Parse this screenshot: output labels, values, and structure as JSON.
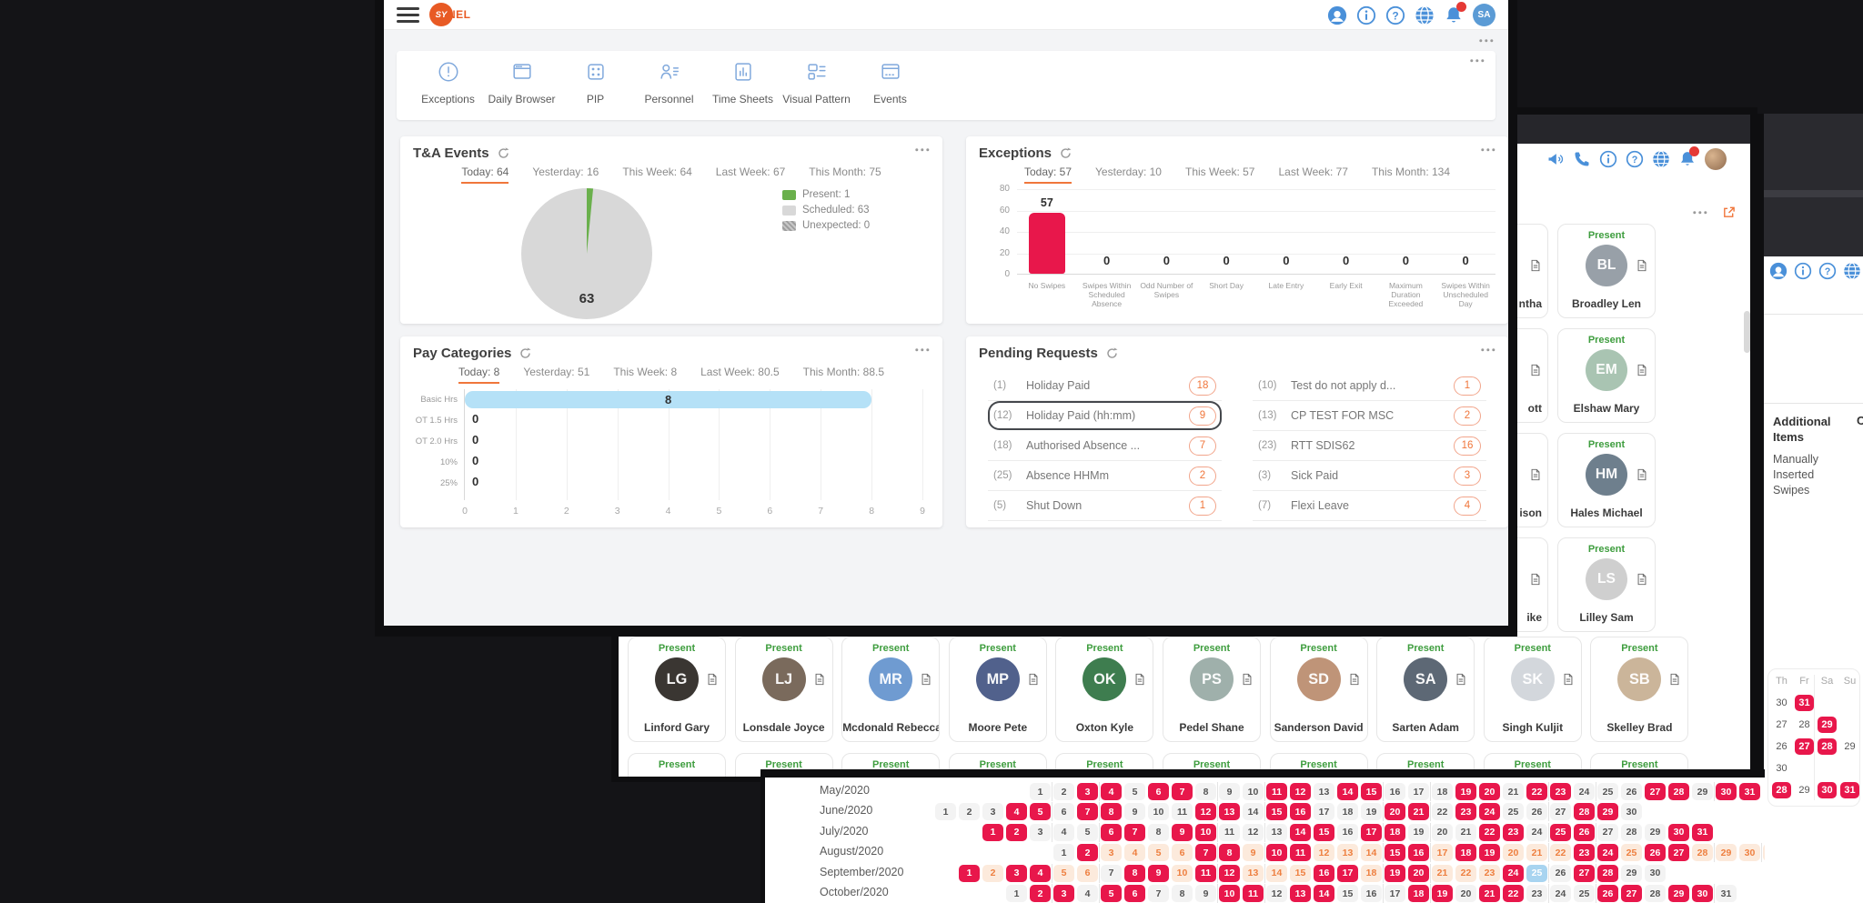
{
  "colors": {
    "accent_orange": "#F0763B",
    "bar_red": "#E8174B",
    "pie_green": "#6AB04C",
    "pie_gray": "#D8D8D8",
    "pie_dark": "#ABABAB",
    "bar_blue": "#B5E1F7",
    "icon_blue": "#4A90D9",
    "toolbar_icon_blue": "#7FA8DC",
    "day_orange_bg": "#FCEADC",
    "day_blue": "#A8D4F0"
  },
  "main_window": {
    "logo": {
      "circle_text": "SY",
      "suffix": "NEL"
    },
    "header_icons": [
      "chat-icon",
      "info-icon",
      "help-icon",
      "globe-icon",
      "bell-icon"
    ],
    "avatar": "SA",
    "toolbar": {
      "items": [
        {
          "label": "Exceptions",
          "icon": "tb-exceptions"
        },
        {
          "label": "Daily Browser",
          "icon": "tb-browser"
        },
        {
          "label": "PIP",
          "icon": "tb-pip"
        },
        {
          "label": "Personnel",
          "icon": "tb-personnel"
        },
        {
          "label": "Time Sheets",
          "icon": "tb-timesheets"
        },
        {
          "label": "Visual Pattern",
          "icon": "tb-pattern"
        },
        {
          "label": "Events",
          "icon": "tb-events"
        }
      ]
    },
    "ta_events": {
      "title": "T&A Events",
      "tabs": [
        "Today: 64",
        "Yesterday: 16",
        "This Week: 64",
        "Last Week: 67",
        "This Month: 75"
      ],
      "active_tab": 0,
      "chart_data": {
        "type": "pie",
        "series": [
          {
            "label": "Present",
            "value": 1,
            "color": "#6AB04C"
          },
          {
            "label": "Scheduled",
            "value": 63,
            "color": "#D8D8D8"
          },
          {
            "label": "Unexpected",
            "value": 0,
            "color": "#ABABAB"
          }
        ],
        "center_label": "63",
        "legend": [
          "Present: 1",
          "Scheduled: 63",
          "Unexpected: 0"
        ],
        "legend_position": "right"
      }
    },
    "exceptions": {
      "title": "Exceptions",
      "tabs": [
        "Today: 57",
        "Yesterday: 10",
        "This Week: 57",
        "Last Week: 77",
        "This Month: 134"
      ],
      "active_tab": 0,
      "chart_data": {
        "type": "bar",
        "categories": [
          "No Swipes",
          "Swipes Within Scheduled Absence",
          "Odd Number of Swipes",
          "Short Day",
          "Late Entry",
          "Early Exit",
          "Maximum Duration Exceeded",
          "Swipes Within Unscheduled Day"
        ],
        "values": [
          57,
          0,
          0,
          0,
          0,
          0,
          0,
          0
        ],
        "bar_color": "#E8174B",
        "ylim": [
          0,
          80
        ],
        "yticks": [
          0,
          20,
          40,
          60,
          80
        ],
        "grid": true
      }
    },
    "pay_categories": {
      "title": "Pay Categories",
      "tabs": [
        "Today: 8",
        "Yesterday: 51",
        "This Week: 8",
        "Last Week: 80.5",
        "This Month: 88.5"
      ],
      "active_tab": 0,
      "chart_data": {
        "type": "bar-horizontal",
        "categories": [
          "Basic Hrs",
          "OT 1.5 Hrs",
          "OT 2.0 Hrs",
          "10%",
          "25%"
        ],
        "values": [
          8,
          0,
          0,
          0,
          0
        ],
        "bar_color": "#B5E1F7",
        "xlim": [
          0,
          9
        ],
        "xticks": [
          0,
          1,
          2,
          3,
          4,
          5,
          6,
          7,
          8,
          9
        ],
        "grid": true
      }
    },
    "pending_requests": {
      "title": "Pending Requests",
      "items_left": [
        {
          "num": "(1)",
          "label": "Holiday Paid",
          "count": "18",
          "highlight": false
        },
        {
          "num": "(12)",
          "label": "Holiday Paid (hh:mm)",
          "count": "9",
          "highlight": true
        },
        {
          "num": "(18)",
          "label": "Authorised Absence ...",
          "count": "7",
          "highlight": false
        },
        {
          "num": "(25)",
          "label": "Absence HHMm",
          "count": "2",
          "highlight": false
        },
        {
          "num": "(5)",
          "label": "Shut Down",
          "count": "1",
          "highlight": false
        }
      ],
      "items_right": [
        {
          "num": "(10)",
          "label": "Test do not apply d...",
          "count": "1",
          "highlight": false
        },
        {
          "num": "(13)",
          "label": "CP TEST FOR MSC",
          "count": "2",
          "highlight": false
        },
        {
          "num": "(23)",
          "label": "RTT SDIS62",
          "count": "16",
          "highlight": false
        },
        {
          "num": "(3)",
          "label": "Sick Paid",
          "count": "3",
          "highlight": false
        },
        {
          "num": "(7)",
          "label": "Flexi Leave",
          "count": "4",
          "highlight": false
        }
      ]
    }
  },
  "personnel_window": {
    "header_icons": [
      "announcement-icon",
      "phone-icon",
      "info-icon",
      "help-icon",
      "globe-icon",
      "bell-icon"
    ],
    "status_label": "Present",
    "side_cards": [
      {
        "name": "Broadley Len",
        "status": "Present",
        "avatar_color": "#98a0a8"
      },
      {
        "name": "Elshaw Mary",
        "status": "Present",
        "avatar_color": "#a9c4b2"
      },
      {
        "name": "Hales Michael",
        "status": "Present",
        "avatar_color": "#6e7f8d"
      },
      {
        "name": "Lilley Sam",
        "status": "Present",
        "avatar_color": "#cfcfcf"
      }
    ],
    "side_partial_fragments": [
      "ntha",
      "ott",
      "ison",
      "ike"
    ],
    "bottom_cards": [
      {
        "name": "Linford Gary",
        "status": "Present",
        "avatar_color": "#3a3632"
      },
      {
        "name": "Lonsdale Joyce",
        "status": "Present",
        "avatar_color": "#7a6a5c"
      },
      {
        "name": "Mcdonald Rebecca",
        "status": "Present",
        "avatar_color": "#6f9bd1"
      },
      {
        "name": "Moore Pete",
        "status": "Present",
        "avatar_color": "#51618c"
      },
      {
        "name": "Oxton Kyle",
        "status": "Present",
        "avatar_color": "#3e7d4f"
      },
      {
        "name": "Pedel Shane",
        "status": "Present",
        "avatar_color": "#9fb0ab"
      },
      {
        "name": "Sanderson David",
        "status": "Present",
        "avatar_color": "#bf9478"
      },
      {
        "name": "Sarten Adam",
        "status": "Present",
        "avatar_color": "#5d6875"
      },
      {
        "name": "Singh Kuljit",
        "status": "Present",
        "avatar_color": "#d3d7dc"
      },
      {
        "name": "Skelley Brad",
        "status": "Present",
        "avatar_color": "#cbb59a"
      }
    ],
    "partial_bottom_row": {
      "count": 10,
      "status": "Present"
    }
  },
  "calendar_window": {
    "chart_data": {
      "type": "table",
      "months": [
        {
          "label": "May/2020",
          "start_weekday": 4,
          "days": 31,
          "red": [
            3,
            4,
            6,
            7,
            11,
            12,
            14,
            15,
            19,
            20,
            22,
            23,
            27,
            28,
            30,
            31
          ],
          "orange": [],
          "blue": []
        },
        {
          "label": "June/2020",
          "start_weekday": 0,
          "days": 30,
          "red": [
            4,
            5,
            7,
            8,
            12,
            13,
            15,
            16,
            20,
            21,
            23,
            24,
            28,
            29
          ],
          "orange": [],
          "blue": []
        },
        {
          "label": "July/2020",
          "start_weekday": 2,
          "days": 31,
          "red": [
            1,
            2,
            6,
            7,
            9,
            10,
            14,
            15,
            17,
            18,
            22,
            23,
            25,
            26,
            30,
            31
          ],
          "orange": [],
          "blue": []
        },
        {
          "label": "August/2020",
          "start_weekday": 5,
          "days": 31,
          "red": [
            2,
            7,
            8,
            10,
            11,
            15,
            16,
            18,
            19,
            23,
            24,
            26,
            27
          ],
          "orange": [
            3,
            4,
            5,
            6,
            9,
            12,
            13,
            14,
            17,
            20,
            21,
            22,
            25,
            28,
            29,
            30,
            31
          ],
          "blue": []
        },
        {
          "label": "September/2020",
          "start_weekday": 1,
          "days": 30,
          "red": [
            1,
            3,
            4,
            8,
            9,
            11,
            12,
            16,
            17,
            19,
            20,
            24,
            27,
            28
          ],
          "orange": [
            2,
            5,
            6,
            10,
            13,
            14,
            15,
            18,
            21,
            22,
            23
          ],
          "blue": [
            25
          ]
        },
        {
          "label": "October/2020",
          "start_weekday": 3,
          "days": 31,
          "red": [
            2,
            3,
            5,
            6,
            10,
            11,
            13,
            14,
            18,
            19,
            21,
            22,
            26,
            27,
            29,
            30
          ],
          "orange": [],
          "blue": []
        }
      ]
    }
  },
  "right_panel_window": {
    "header_icons": [
      "chat-icon",
      "info-icon",
      "help-icon",
      "globe-icon"
    ],
    "section_title": "Additional Items",
    "clipped_header": "C",
    "section_item": "Manually Inserted Swipes",
    "mini_calendar": {
      "day_headers": [
        "Th",
        "Fr",
        "Sa",
        "Su"
      ],
      "rows": [
        [
          {
            "d": "30"
          },
          {
            "d": "31",
            "red": true
          },
          null,
          null
        ],
        [
          {
            "d": "27"
          },
          {
            "d": "28"
          },
          {
            "d": "29",
            "red": true
          },
          null
        ],
        [
          {
            "d": "26"
          },
          {
            "d": "27",
            "red": true
          },
          {
            "d": "28",
            "red": true
          },
          {
            "d": "29"
          }
        ],
        [
          {
            "d": "30"
          },
          null,
          null,
          null
        ],
        [
          {
            "d": "28",
            "red": true
          },
          {
            "d": "29"
          },
          {
            "d": "30",
            "red": true
          },
          {
            "d": "31",
            "red": true
          }
        ]
      ]
    }
  }
}
